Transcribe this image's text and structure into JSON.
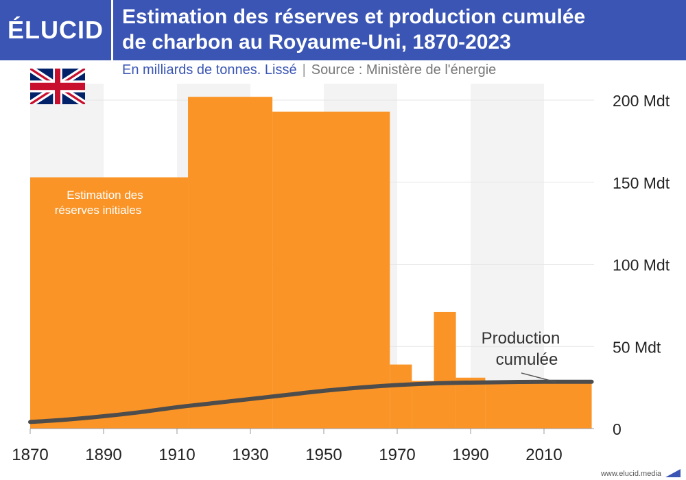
{
  "header": {
    "logo": "ÉLUCID",
    "title_line1": "Estimation des réserves et production cumulée",
    "title_line2": "de charbon au Royaume-Uni, 1870-2023",
    "subtitle_units": "En milliards de tonnes. Lissé",
    "subtitle_separator": "|",
    "subtitle_source": "Source : Ministère de l'énergie"
  },
  "colors": {
    "header_bg": "#3a55b4",
    "bars": "#fa9426",
    "line": "#4d4d4d",
    "band": "#f3f3f3",
    "grid": "#e6e6e6",
    "axis_text": "#222222"
  },
  "footer": {
    "url": "www.elucid.media"
  },
  "chart_data": {
    "type": "bar",
    "x_range": [
      1870,
      2023
    ],
    "ylim": [
      0,
      210
    ],
    "yticks": [
      0,
      50,
      100,
      150,
      200
    ],
    "ytick_labels": [
      "0",
      "50 Mdt",
      "100 Mdt",
      "150 Mdt",
      "200 Mdt"
    ],
    "xticks": [
      1870,
      1890,
      1910,
      1930,
      1950,
      1970,
      1990,
      2010
    ],
    "xtick_labels": [
      "1870",
      "1890",
      "1910",
      "1930",
      "1950",
      "1970",
      "1990",
      "2010"
    ],
    "shaded_bands": [
      [
        1870,
        1890
      ],
      [
        1910,
        1930
      ],
      [
        1950,
        1970
      ],
      [
        1990,
        2010
      ]
    ],
    "grid": true,
    "series": [
      {
        "name": "Estimation des réserves initiales",
        "type": "step-bar",
        "segments": [
          {
            "start": 1870,
            "end": 1913,
            "value": 153
          },
          {
            "start": 1913,
            "end": 1936,
            "value": 202
          },
          {
            "start": 1936,
            "end": 1968,
            "value": 193
          },
          {
            "start": 1968,
            "end": 1974,
            "value": 39
          },
          {
            "start": 1974,
            "end": 1980,
            "value": 29
          },
          {
            "start": 1980,
            "end": 1986,
            "value": 71
          },
          {
            "start": 1986,
            "end": 1994,
            "value": 31
          },
          {
            "start": 1994,
            "end": 2023,
            "value": 29
          }
        ]
      },
      {
        "name": "Production cumulée",
        "type": "line",
        "x": [
          1870,
          1880,
          1890,
          1900,
          1910,
          1920,
          1930,
          1940,
          1950,
          1960,
          1970,
          1980,
          1990,
          2000,
          2010,
          2023
        ],
        "y": [
          4,
          5.5,
          7.5,
          10,
          13,
          15.5,
          18,
          20.5,
          23,
          25,
          26.5,
          27.5,
          28,
          28.3,
          28.5,
          28.5
        ]
      }
    ],
    "annotations": [
      {
        "text_line1": "Estimation des",
        "text_line2": "réserves initiales"
      },
      {
        "text_line1": "Production",
        "text_line2": "cumulée"
      }
    ]
  }
}
